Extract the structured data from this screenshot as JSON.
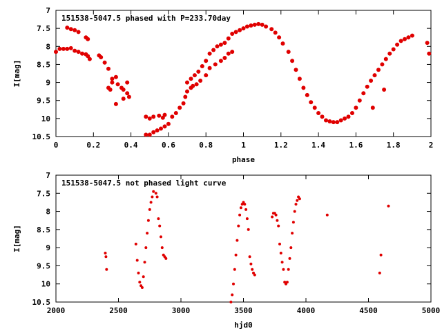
{
  "chart_data": [
    {
      "type": "scatter",
      "title": "151538-5047.5 phased with P=233.70day",
      "xlabel": "phase",
      "ylabel": "I[mag]",
      "xlim": [
        0,
        2
      ],
      "ylim": [
        7,
        10.5
      ],
      "y_inverted": true,
      "xticks": [
        "0",
        "0.2",
        "0.4",
        "0.6",
        "0.8",
        "1",
        "1.2",
        "1.4",
        "1.6",
        "1.8",
        "2"
      ],
      "yticks": [
        "7",
        "7.5",
        "8",
        "8.5",
        "9",
        "9.5",
        "10",
        "10.5"
      ],
      "grid": false,
      "marker_color": "#e00000",
      "series": [
        {
          "x": [
            0.0,
            0.02,
            0.04,
            0.06,
            0.08,
            0.1,
            0.12,
            0.14,
            0.16,
            0.17,
            0.18,
            0.06,
            0.08,
            0.1,
            0.12,
            0.16,
            0.17,
            0.23,
            0.24,
            0.26,
            0.28,
            0.28,
            0.29,
            0.3,
            0.3,
            0.32,
            0.33,
            0.35,
            0.36,
            0.38,
            0.38,
            0.39,
            0.32,
            0.36,
            0.48,
            0.5,
            0.52,
            0.55,
            0.57,
            0.58,
            0.48,
            0.5,
            0.52,
            0.54,
            0.56,
            0.58,
            0.6,
            0.62,
            0.64,
            0.66,
            0.68,
            0.69,
            0.7,
            0.72,
            0.73,
            0.75,
            0.77,
            0.8,
            0.82,
            0.85,
            0.88,
            0.9,
            0.92,
            0.94,
            0.7,
            0.72,
            0.74,
            0.76,
            0.78,
            0.8,
            0.82,
            0.84,
            0.86,
            0.88,
            0.9,
            0.92,
            0.94,
            0.96,
            0.98,
            1.0,
            1.02,
            1.04,
            1.06,
            1.08,
            1.1,
            1.12,
            1.15,
            1.17,
            1.19,
            1.21,
            1.24,
            1.26,
            1.28,
            1.3,
            1.32,
            1.34,
            1.36,
            1.38,
            1.4,
            1.42,
            1.44,
            1.46,
            1.48,
            1.5,
            1.52,
            1.54,
            1.56,
            1.58,
            1.6,
            1.62,
            1.64,
            1.66,
            1.68,
            1.7,
            1.72,
            1.74,
            1.76,
            1.78,
            1.8,
            1.82,
            1.84,
            1.86,
            1.88,
            1.9,
            1.98,
            1.99,
            1.69,
            1.75
          ],
          "y": [
            8.15,
            8.07,
            8.07,
            8.07,
            8.05,
            8.12,
            8.15,
            8.2,
            8.22,
            8.27,
            8.35,
            7.48,
            7.52,
            7.55,
            7.6,
            7.75,
            7.8,
            8.25,
            8.3,
            8.45,
            8.62,
            9.15,
            9.2,
            8.9,
            9.0,
            8.85,
            9.05,
            9.15,
            9.2,
            9.3,
            9.0,
            9.4,
            9.6,
            9.45,
            9.95,
            10.0,
            9.95,
            9.92,
            9.98,
            9.9,
            10.45,
            10.45,
            10.38,
            10.33,
            10.28,
            10.22,
            10.15,
            9.95,
            9.85,
            9.7,
            9.58,
            9.4,
            9.25,
            9.15,
            9.1,
            9.05,
            8.95,
            8.8,
            8.6,
            8.5,
            8.4,
            8.32,
            8.2,
            8.15,
            9.0,
            8.9,
            8.8,
            8.7,
            8.55,
            8.4,
            8.2,
            8.1,
            8.0,
            7.95,
            7.9,
            7.78,
            7.65,
            7.6,
            7.55,
            7.5,
            7.45,
            7.42,
            7.4,
            7.38,
            7.4,
            7.45,
            7.52,
            7.62,
            7.75,
            7.92,
            8.15,
            8.4,
            8.65,
            8.9,
            9.15,
            9.35,
            9.55,
            9.7,
            9.85,
            9.95,
            10.05,
            10.08,
            10.1,
            10.1,
            10.05,
            10.0,
            9.95,
            9.85,
            9.7,
            9.5,
            9.3,
            9.12,
            8.95,
            8.8,
            8.65,
            8.5,
            8.35,
            8.2,
            8.08,
            7.95,
            7.85,
            7.8,
            7.75,
            7.7,
            7.9,
            8.2,
            9.7,
            9.2
          ]
        }
      ]
    },
    {
      "type": "scatter",
      "title": "151538-5047.5 not phased light curve",
      "xlabel": "hjd0",
      "ylabel": "I[mag]",
      "xlim": [
        2000,
        5000
      ],
      "ylim": [
        7,
        10.5
      ],
      "y_inverted": true,
      "xticks": [
        "2000",
        "2500",
        "3000",
        "3500",
        "4000",
        "4500",
        "5000"
      ],
      "yticks": [
        "7",
        "7.5",
        "8",
        "8.5",
        "9",
        "9.5",
        "10",
        "10.5"
      ],
      "grid": false,
      "marker_color": "#e00000",
      "series": [
        {
          "x": [
            2395,
            2400,
            2405,
            2640,
            2650,
            2660,
            2670,
            2680,
            2690,
            2700,
            2710,
            2720,
            2730,
            2740,
            2750,
            2760,
            2770,
            2780,
            2800,
            2810,
            2820,
            2830,
            2840,
            2850,
            2860,
            2870,
            2880,
            3400,
            3410,
            3420,
            3430,
            3440,
            3450,
            3460,
            3470,
            3480,
            3490,
            3500,
            3510,
            3520,
            3530,
            3540,
            3550,
            3560,
            3570,
            3580,
            3590,
            3730,
            3740,
            3750,
            3760,
            3770,
            3780,
            3790,
            3800,
            3810,
            3820,
            3830,
            3840,
            3850,
            3860,
            3870,
            3880,
            3890,
            3900,
            3910,
            3920,
            3930,
            3940,
            3950,
            4170,
            4590,
            4600,
            4660
          ],
          "y": [
            9.15,
            9.25,
            9.6,
            8.9,
            9.35,
            9.7,
            9.95,
            10.05,
            10.1,
            9.8,
            9.4,
            9.0,
            8.6,
            8.25,
            7.95,
            7.75,
            7.6,
            7.45,
            7.5,
            7.6,
            8.2,
            8.4,
            8.7,
            9.0,
            9.2,
            9.25,
            9.3,
            10.5,
            10.3,
            10.0,
            9.6,
            9.2,
            8.8,
            8.4,
            8.1,
            7.9,
            7.8,
            7.75,
            7.8,
            7.95,
            8.2,
            8.5,
            9.25,
            9.45,
            9.6,
            9.7,
            9.75,
            8.15,
            8.05,
            8.05,
            8.1,
            8.25,
            8.4,
            8.9,
            9.15,
            9.4,
            9.6,
            9.95,
            10.0,
            9.95,
            9.6,
            9.3,
            9.0,
            8.6,
            8.3,
            8.0,
            7.8,
            7.7,
            7.6,
            7.65,
            8.1,
            9.7,
            9.2,
            7.85
          ]
        }
      ]
    }
  ]
}
